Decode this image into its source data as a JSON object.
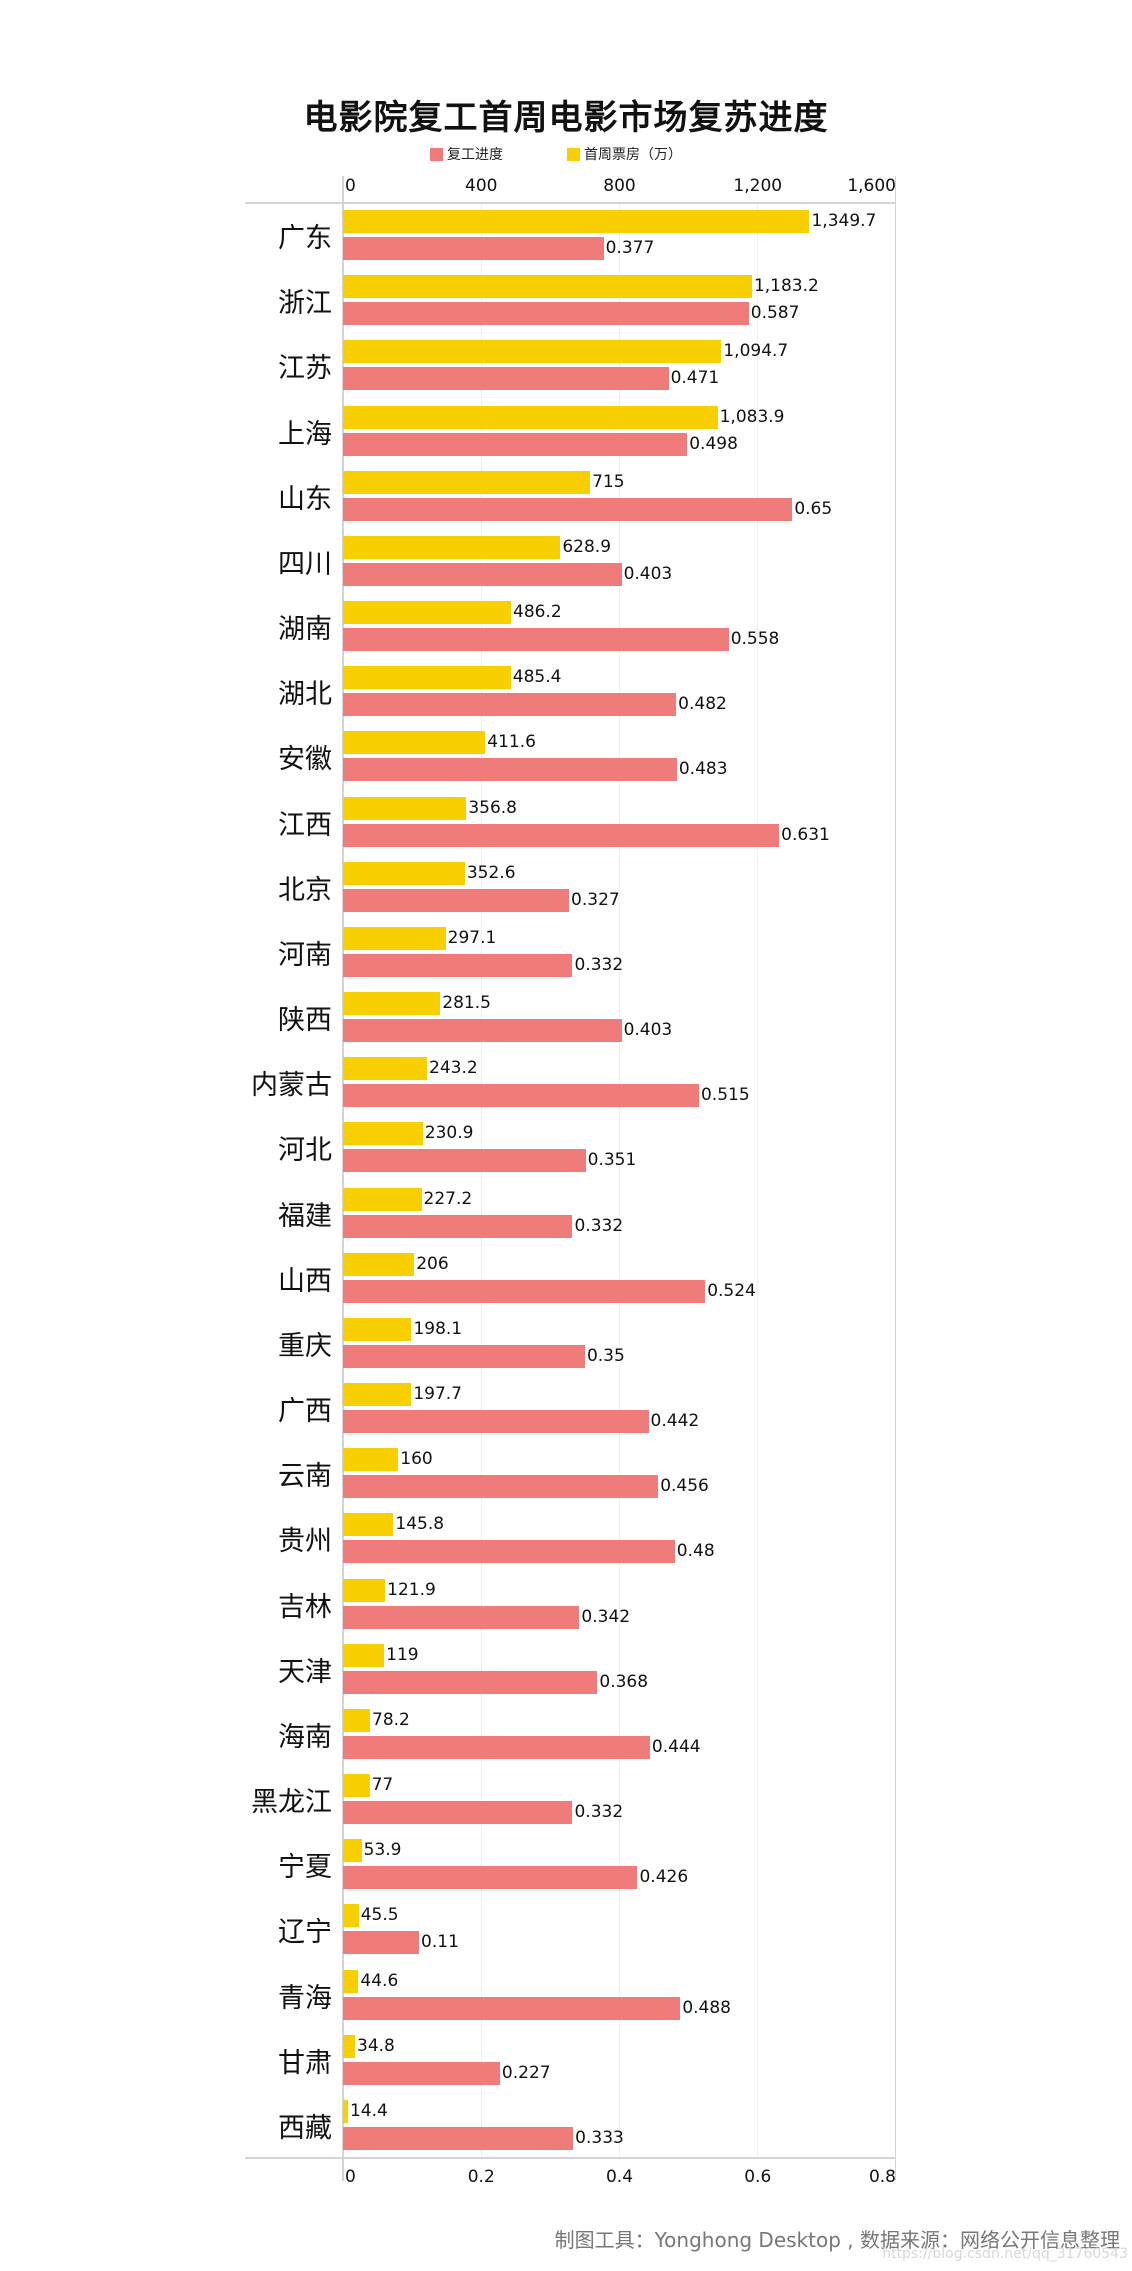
{
  "chart_data": {
    "type": "bar",
    "orientation": "horizontal",
    "title": "电影院复工首周电影市场复苏进度",
    "legend": [
      "复工进度",
      "首周票房（万）"
    ],
    "legend_position": "top",
    "grid": true,
    "categories": [
      "广东",
      "浙江",
      "江苏",
      "上海",
      "山东",
      "四川",
      "湖南",
      "湖北",
      "安徽",
      "江西",
      "北京",
      "河南",
      "陕西",
      "内蒙古",
      "河北",
      "福建",
      "山西",
      "重庆",
      "广西",
      "云南",
      "贵州",
      "吉林",
      "天津",
      "海南",
      "黑龙江",
      "宁夏",
      "辽宁",
      "青海",
      "甘肃",
      "西藏"
    ],
    "series": [
      {
        "name": "首周票房（万）",
        "color": "#f8cf00",
        "axis": "top",
        "xlim": [
          0,
          1600
        ],
        "values": [
          1349.7,
          1183.2,
          1094.7,
          1083.9,
          715,
          628.9,
          486.2,
          485.4,
          411.6,
          356.8,
          352.6,
          297.1,
          281.5,
          243.2,
          230.9,
          227.2,
          206,
          198.1,
          197.7,
          160,
          145.8,
          121.9,
          119,
          78.2,
          77,
          53.9,
          45.5,
          44.6,
          34.8,
          14.4
        ],
        "labels": [
          "1,349.7",
          "1,183.2",
          "1,094.7",
          "1,083.9",
          "715",
          "628.9",
          "486.2",
          "485.4",
          "411.6",
          "356.8",
          "352.6",
          "297.1",
          "281.5",
          "243.2",
          "230.9",
          "227.2",
          "206",
          "198.1",
          "197.7",
          "160",
          "145.8",
          "121.9",
          "119",
          "78.2",
          "77",
          "53.9",
          "45.5",
          "44.6",
          "34.8",
          "14.4"
        ]
      },
      {
        "name": "复工进度",
        "color": "#f07b7b",
        "axis": "bottom",
        "xlim": [
          0,
          0.8
        ],
        "values": [
          0.377,
          0.587,
          0.471,
          0.498,
          0.65,
          0.403,
          0.558,
          0.482,
          0.483,
          0.631,
          0.327,
          0.332,
          0.403,
          0.515,
          0.351,
          0.332,
          0.524,
          0.35,
          0.442,
          0.456,
          0.48,
          0.342,
          0.368,
          0.444,
          0.332,
          0.426,
          0.11,
          0.488,
          0.227,
          0.333
        ],
        "labels": [
          "0.377",
          "0.587",
          "0.471",
          "0.498",
          "0.65",
          "0.403",
          "0.558",
          "0.482",
          "0.483",
          "0.631",
          "0.327",
          "0.332",
          "0.403",
          "0.515",
          "0.351",
          "0.332",
          "0.524",
          "0.35",
          "0.442",
          "0.456",
          "0.48",
          "0.342",
          "0.368",
          "0.444",
          "0.332",
          "0.426",
          "0.11",
          "0.488",
          "0.227",
          "0.333"
        ]
      }
    ],
    "top_axis_ticks": [
      "0",
      "400",
      "800",
      "1,200",
      "1,600"
    ],
    "bottom_axis_ticks": [
      "0",
      "0.2",
      "0.4",
      "0.6",
      "0.8"
    ],
    "xlabel": "",
    "ylabel": ""
  },
  "title": "电影院复工首周电影市场复苏进度",
  "legend": {
    "progress_label": "复工进度",
    "progress_color": "#f07b7b",
    "boxoffice_label": "首周票房（万）",
    "boxoffice_color": "#f8cf00"
  },
  "footer": "制图工具：Yonghong Desktop , 数据来源：网络公开信息整理",
  "watermark": "https://blog.csdn.net/qq_31760543"
}
